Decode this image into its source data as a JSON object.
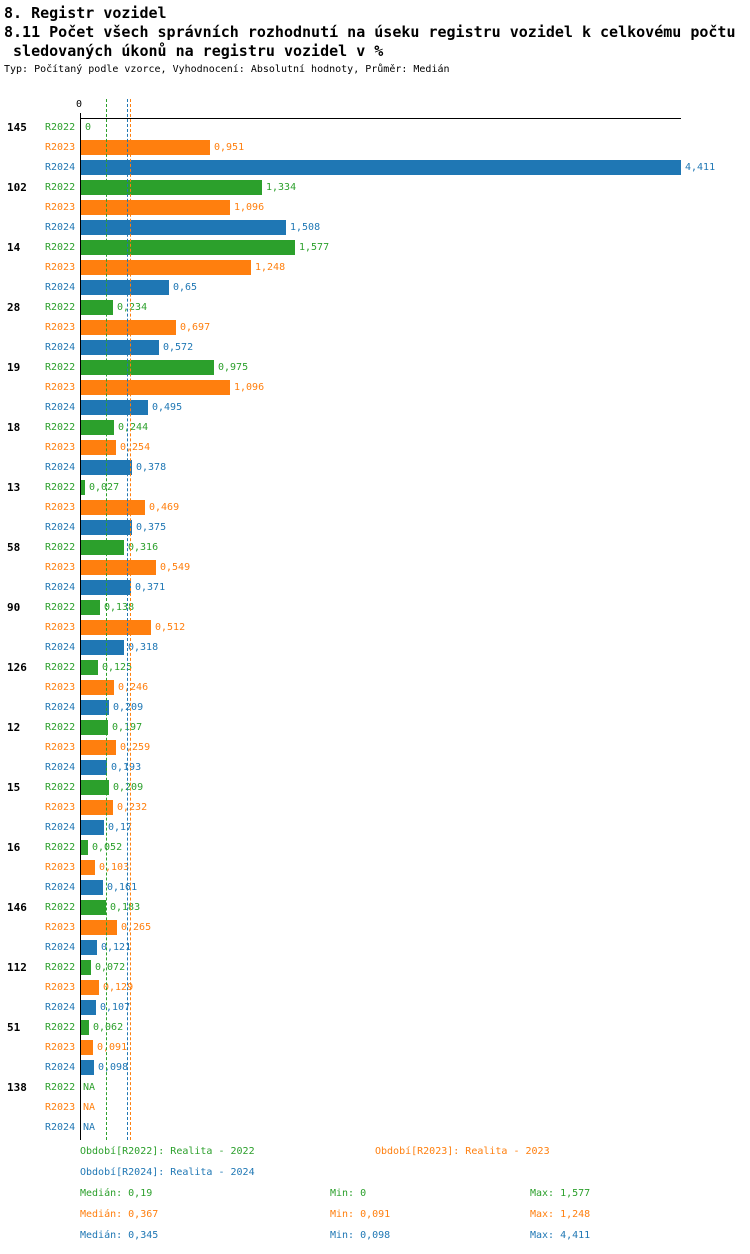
{
  "header": {
    "title": "8. Registr vozidel",
    "subtitle_line1": "8.11 Počet všech správních rozhodnutí na úseku registru vozidel k celkovému počtu",
    "subtitle_line2": " sledovaných úkonů na registru vozidel v %",
    "meta": "Typ: Počítaný podle vzorce, Vyhodnocení: Absolutní hodnoty, Průměr: Medián"
  },
  "chart_data": {
    "type": "bar",
    "orientation": "horizontal",
    "title": "8.11 Počet všech správních rozhodnutí na úseku registru vozidel k celkovému počtu sledovaných úkonů na registru vozidel v %",
    "x_axis_origin_label": "0",
    "xlim": [
      0,
      4.411
    ],
    "series": [
      "R2022",
      "R2023",
      "R2024"
    ],
    "series_colors": [
      "#2ca02c",
      "#ff7f0e",
      "#1f77b4"
    ],
    "groups": [
      {
        "label": "145",
        "values": [
          0,
          0.951,
          4.411
        ],
        "display": [
          "0",
          "0,951",
          "4,411"
        ]
      },
      {
        "label": "102",
        "values": [
          1.334,
          1.096,
          1.508
        ],
        "display": [
          "1,334",
          "1,096",
          "1,508"
        ]
      },
      {
        "label": "14",
        "values": [
          1.577,
          1.248,
          0.65
        ],
        "display": [
          "1,577",
          "1,248",
          "0,65"
        ]
      },
      {
        "label": "28",
        "values": [
          0.234,
          0.697,
          0.572
        ],
        "display": [
          "0,234",
          "0,697",
          "0,572"
        ]
      },
      {
        "label": "19",
        "values": [
          0.975,
          1.096,
          0.495
        ],
        "display": [
          "0,975",
          "1,096",
          "0,495"
        ]
      },
      {
        "label": "18",
        "values": [
          0.244,
          0.254,
          0.378
        ],
        "display": [
          "0,244",
          "0,254",
          "0,378"
        ]
      },
      {
        "label": "13",
        "values": [
          0.027,
          0.469,
          0.375
        ],
        "display": [
          "0,027",
          "0,469",
          "0,375"
        ]
      },
      {
        "label": "58",
        "values": [
          0.316,
          0.549,
          0.371
        ],
        "display": [
          "0,316",
          "0,549",
          "0,371"
        ]
      },
      {
        "label": "90",
        "values": [
          0.138,
          0.512,
          0.318
        ],
        "display": [
          "0,138",
          "0,512",
          "0,318"
        ]
      },
      {
        "label": "126",
        "values": [
          0.125,
          0.246,
          0.209
        ],
        "display": [
          "0,125",
          "0,246",
          "0,209"
        ]
      },
      {
        "label": "12",
        "values": [
          0.197,
          0.259,
          0.193
        ],
        "display": [
          "0,197",
          "0,259",
          "0,193"
        ]
      },
      {
        "label": "15",
        "values": [
          0.209,
          0.232,
          0.17
        ],
        "display": [
          "0,209",
          "0,232",
          "0,17"
        ]
      },
      {
        "label": "16",
        "values": [
          0.052,
          0.103,
          0.161
        ],
        "display": [
          "0,052",
          "0,103",
          "0,161"
        ]
      },
      {
        "label": "146",
        "values": [
          0.183,
          0.265,
          0.121
        ],
        "display": [
          "0,183",
          "0,265",
          "0,121"
        ]
      },
      {
        "label": "112",
        "values": [
          0.072,
          0.129,
          0.107
        ],
        "display": [
          "0,072",
          "0,129",
          "0,107"
        ]
      },
      {
        "label": "51",
        "values": [
          0.062,
          0.091,
          0.098
        ],
        "display": [
          "0,062",
          "0,091",
          "0,098"
        ]
      },
      {
        "label": "138",
        "values": [
          null,
          null,
          null
        ],
        "display": [
          "NA",
          "NA",
          "NA"
        ]
      }
    ],
    "median_lines": [
      {
        "series": "R2022",
        "value": 0.19
      },
      {
        "series": "R2024",
        "value": 0.345
      },
      {
        "series": "R2023",
        "value": 0.367
      }
    ]
  },
  "legend": {
    "items": [
      {
        "series": "R2022",
        "label": "Období[R2022]: Realita - 2022"
      },
      {
        "series": "R2023",
        "label": "Období[R2023]: Realita - 2023"
      },
      {
        "series": "R2024",
        "label": "Období[R2024]: Realita - 2024"
      }
    ],
    "stats": [
      {
        "series": "R2022",
        "median_label": "Medián: 0,19",
        "min_label": "Min: 0",
        "max_label": "Max: 1,577"
      },
      {
        "series": "R2023",
        "median_label": "Medián: 0,367",
        "min_label": "Min: 0,091",
        "max_label": "Max: 1,248"
      },
      {
        "series": "R2024",
        "median_label": "Medián: 0,345",
        "min_label": "Min: 0,098",
        "max_label": "Max: 4,411"
      }
    ]
  }
}
